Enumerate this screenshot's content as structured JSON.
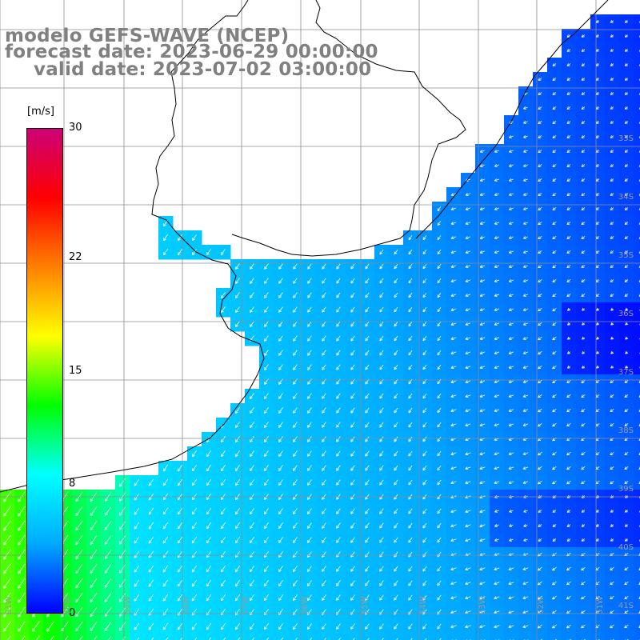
{
  "title": {
    "line1": "modelo GEFS-WAVE (NCEP)",
    "line2": "forecast date: 2023-06-29 00:00:00",
    "line3": "valid date: 2023-07-02 03:00:00"
  },
  "colorbar": {
    "unit_label": "[m/s]",
    "min": 0,
    "max": 30,
    "ticks": [
      {
        "label": "30",
        "value": 30
      },
      {
        "label": "22",
        "value": 22
      },
      {
        "label": "15",
        "value": 15
      },
      {
        "label": "8",
        "value": 8
      },
      {
        "label": "0",
        "value": 0
      }
    ],
    "colors": [
      "#0000ff",
      "#00aaff",
      "#00ffff",
      "#00ff00",
      "#ffff00",
      "#ff8000",
      "#ff0000",
      "#cc0077"
    ]
  },
  "lat_labels": [
    "33S",
    "34S",
    "35S",
    "36S",
    "37S",
    "38S",
    "39S",
    "40S",
    "41S"
  ],
  "lon_labels": [
    "61W",
    "60W",
    "59W",
    "58W",
    "57W",
    "56W",
    "55W",
    "54W",
    "53W",
    "52W",
    "51W"
  ],
  "map_colors": {
    "land": "#ffffff",
    "grid": "#8c8c8c",
    "coast": "#000000",
    "arrow": "#ffffff"
  }
}
